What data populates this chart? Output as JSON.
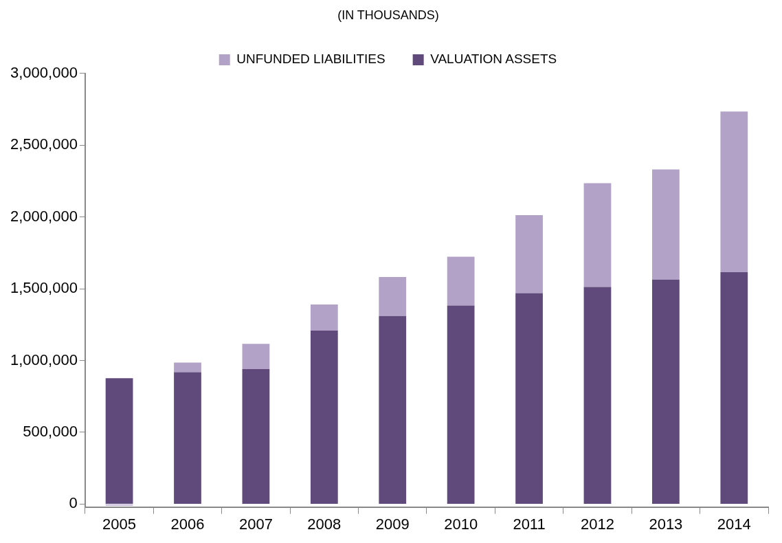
{
  "chart_data": {
    "type": "bar",
    "title": "(IN THOUSANDS)",
    "stacked": true,
    "legend": "top",
    "grid": false,
    "categories": [
      "2005",
      "2006",
      "2007",
      "2008",
      "2009",
      "2010",
      "2011",
      "2012",
      "2013",
      "2014"
    ],
    "series": [
      {
        "name": "VALUATION ASSETS",
        "color": "#604a7b",
        "values": [
          877000,
          919000,
          940000,
          1208000,
          1310000,
          1383000,
          1469000,
          1512000,
          1563000,
          1615000
        ]
      },
      {
        "name": "UNFUNDED LIABILITIES",
        "color": "#b3a2c7",
        "values": [
          -10000,
          66000,
          176000,
          182000,
          272000,
          340000,
          543000,
          723000,
          767000,
          1119000
        ]
      }
    ],
    "ylim": [
      -20000,
      3000000
    ],
    "yticks": [
      {
        "value": 0,
        "label": "0"
      },
      {
        "value": 500000,
        "label": "500,000"
      },
      {
        "value": 1000000,
        "label": "1,000,000"
      },
      {
        "value": 1500000,
        "label": "1,500,000"
      },
      {
        "value": 2000000,
        "label": "2,000,000"
      },
      {
        "value": 2500000,
        "label": "2,500,000"
      },
      {
        "value": 3000000,
        "label": "3,000,000"
      }
    ]
  }
}
